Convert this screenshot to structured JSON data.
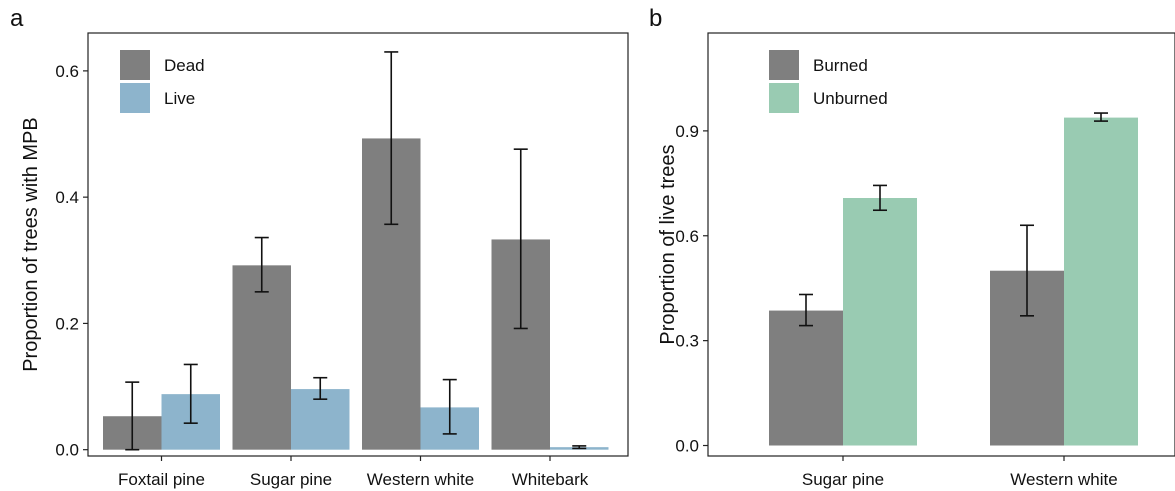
{
  "chart_data": [
    {
      "panel_label": "a",
      "type": "bar",
      "categories": [
        "Foxtail pine",
        "Sugar pine",
        "Western white",
        "Whitebark"
      ],
      "series": [
        {
          "name": "Dead",
          "color": "#7f7f7f",
          "values": [
            0.053,
            0.292,
            0.493,
            0.333
          ],
          "error_low": [
            0.0,
            0.25,
            0.357,
            0.192
          ],
          "error_high": [
            0.107,
            0.336,
            0.63,
            0.476
          ]
        },
        {
          "name": "Live",
          "color": "#8db4cc",
          "values": [
            0.088,
            0.096,
            0.067,
            0.004
          ],
          "error_low": [
            0.042,
            0.08,
            0.025,
            0.002
          ],
          "error_high": [
            0.135,
            0.114,
            0.111,
            0.006
          ]
        }
      ],
      "xlabel": "",
      "ylabel": "Proportion of trees with MPB",
      "ylim": [
        -0.01,
        0.66
      ],
      "yticks": [
        0.0,
        0.2,
        0.4,
        0.6
      ],
      "ytick_labels": [
        "0.0",
        "0.2",
        "0.4",
        "0.6"
      ],
      "legend_position": "top-left",
      "grid": false
    },
    {
      "panel_label": "b",
      "type": "bar",
      "categories": [
        "Sugar pine",
        "Western white"
      ],
      "series": [
        {
          "name": "Burned",
          "color": "#7f7f7f",
          "values": [
            0.386,
            0.5
          ],
          "error_low": [
            0.343,
            0.371
          ],
          "error_high": [
            0.432,
            0.63
          ]
        },
        {
          "name": "Unburned",
          "color": "#99cbb2",
          "values": [
            0.708,
            0.938
          ],
          "error_low": [
            0.673,
            0.928
          ],
          "error_high": [
            0.744,
            0.951
          ]
        }
      ],
      "xlabel": "",
      "ylabel": "Proportion of live trees",
      "ylim": [
        -0.03,
        1.18
      ],
      "yticks": [
        0.0,
        0.3,
        0.6,
        0.9
      ],
      "ytick_labels": [
        "0.0",
        "0.3",
        "0.6",
        "0.9"
      ],
      "legend_position": "top-left",
      "grid": false
    }
  ]
}
